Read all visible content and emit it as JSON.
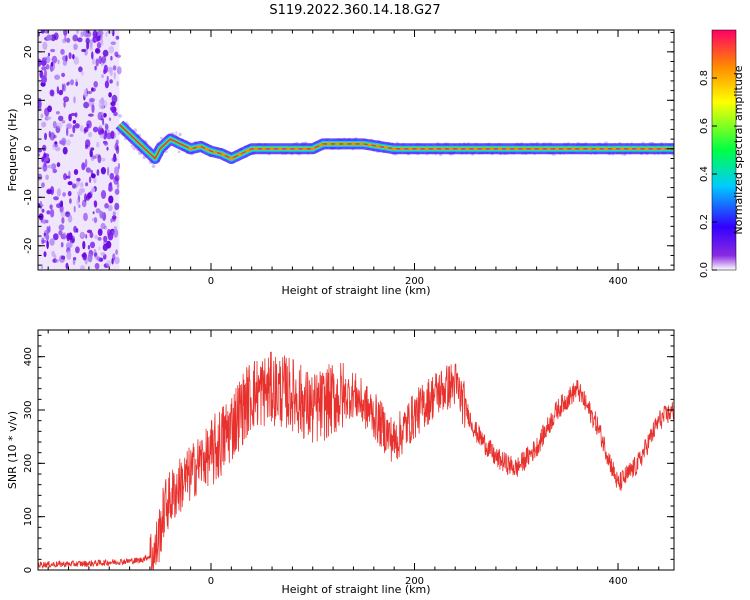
{
  "title": "S119.2022.360.14.18.G27",
  "chart_data": [
    {
      "type": "heatmap",
      "xlabel": "Height of straight line (km)",
      "ylabel": "Frequency (Hz)",
      "xlim": [
        -170,
        455
      ],
      "ylim": [
        -25,
        24.5
      ],
      "xticks": [
        0,
        200,
        400
      ],
      "yticks": [
        -20,
        -10,
        0,
        10,
        20
      ],
      "ridge": {
        "x": [
          -90,
          -80,
          -70,
          -60,
          -55,
          -50,
          -40,
          -30,
          -20,
          -10,
          0,
          10,
          20,
          30,
          40,
          60,
          100,
          110,
          150,
          180,
          200,
          300,
          400,
          455
        ],
        "y": [
          5,
          3,
          1,
          -1,
          -2,
          0,
          2,
          1,
          0,
          0.5,
          -0.5,
          -1,
          -2,
          -1,
          0,
          0,
          0,
          1,
          1,
          0,
          0,
          0,
          0,
          0
        ]
      },
      "noise_region": {
        "x_from": -170,
        "x_to": -90
      },
      "colorbar": {
        "label": "Normalized spectral amplitude",
        "range": [
          0,
          1
        ],
        "ticks": [
          "0.0",
          "0.2",
          "0.4",
          "0.6",
          "0.8"
        ]
      }
    },
    {
      "type": "line",
      "xlabel": "Height of straight line (km)",
      "ylabel": "SNR (10 * v/v)",
      "xlim": [
        -170,
        455
      ],
      "ylim": [
        0,
        450
      ],
      "xticks": [
        0,
        200,
        400
      ],
      "yticks": [
        0,
        100,
        200,
        300,
        400
      ],
      "color": "#e8312d",
      "series": [
        {
          "x": [
            -170,
            -120,
            -70,
            -55,
            -45,
            -30,
            -20,
            -10,
            0,
            10,
            20,
            30,
            40,
            60,
            80,
            100,
            120,
            140,
            160,
            180,
            200,
            220,
            240,
            260,
            280,
            300,
            320,
            340,
            360,
            380,
            400,
            420,
            440,
            455
          ],
          "y": [
            10,
            12,
            18,
            30,
            120,
            160,
            180,
            205,
            215,
            240,
            270,
            300,
            330,
            340,
            330,
            300,
            320,
            330,
            290,
            240,
            290,
            330,
            350,
            260,
            210,
            190,
            230,
            300,
            340,
            270,
            160,
            200,
            280,
            300
          ]
        }
      ]
    }
  ]
}
